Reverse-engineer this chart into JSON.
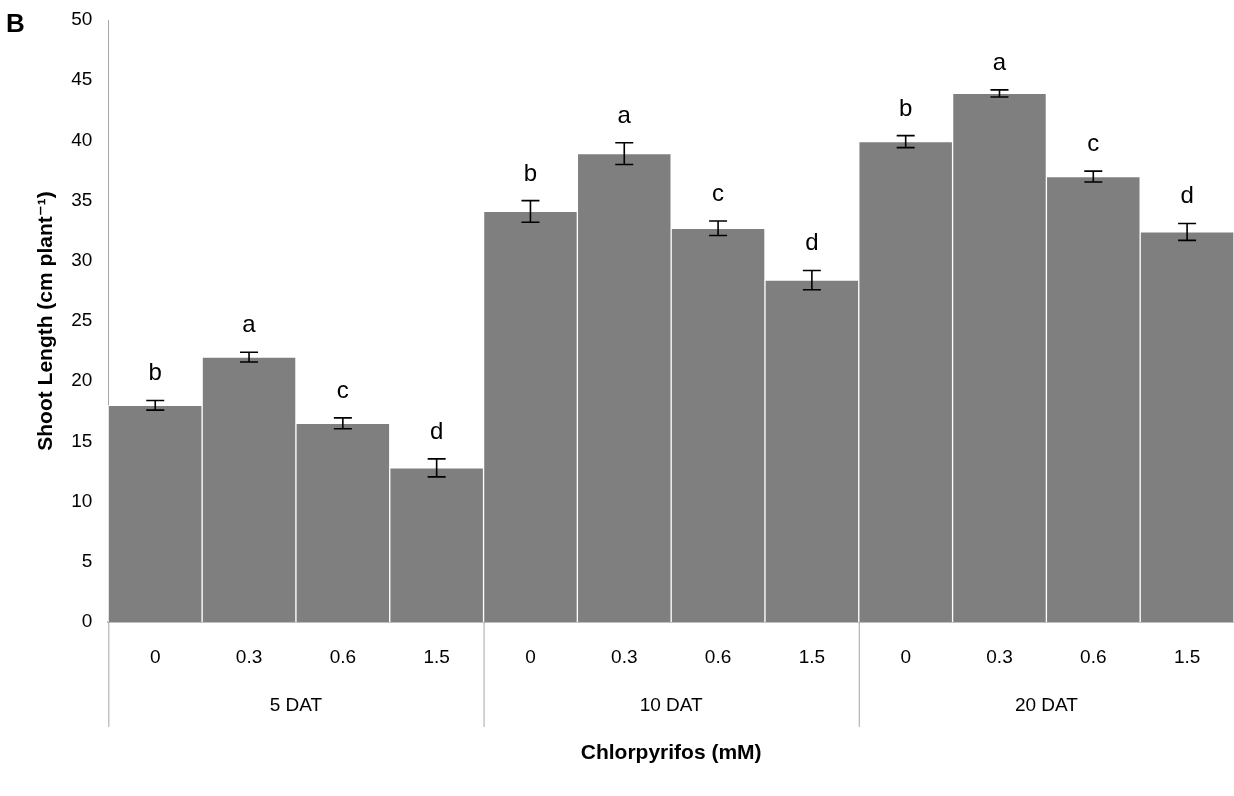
{
  "chart_data": {
    "type": "bar",
    "title": "B",
    "xlabel": "Chlorpyrifos (mM)",
    "ylabel": "Shoot Length (cm plant⁻¹)",
    "categories": [
      "0",
      "0.3",
      "0.6",
      "1.5",
      "0",
      "0.3",
      "0.6",
      "1.5",
      "0",
      "0.3",
      "0.6",
      "1.5"
    ],
    "values": [
      18,
      22,
      16.5,
      12.8,
      34.1,
      38.9,
      32.7,
      28.4,
      39.9,
      43.9,
      37.0,
      32.4
    ],
    "errors": [
      0.4,
      0.4,
      0.45,
      0.75,
      0.9,
      0.9,
      0.6,
      0.8,
      0.5,
      0.3,
      0.45,
      0.7
    ],
    "value_labels": [
      "b",
      "a",
      "c",
      "d",
      "b",
      "a",
      "c",
      "d",
      "b",
      "a",
      "c",
      "d"
    ],
    "color": "#7f7f7f",
    "annotations": [
      "5 DAT",
      "10 DAT",
      "20 DAT"
    ],
    "ylim": [
      0,
      50
    ],
    "yticks": [
      0,
      5,
      10,
      15,
      20,
      25,
      30,
      35,
      40,
      45,
      50
    ],
    "grid": false,
    "legend": false
  }
}
